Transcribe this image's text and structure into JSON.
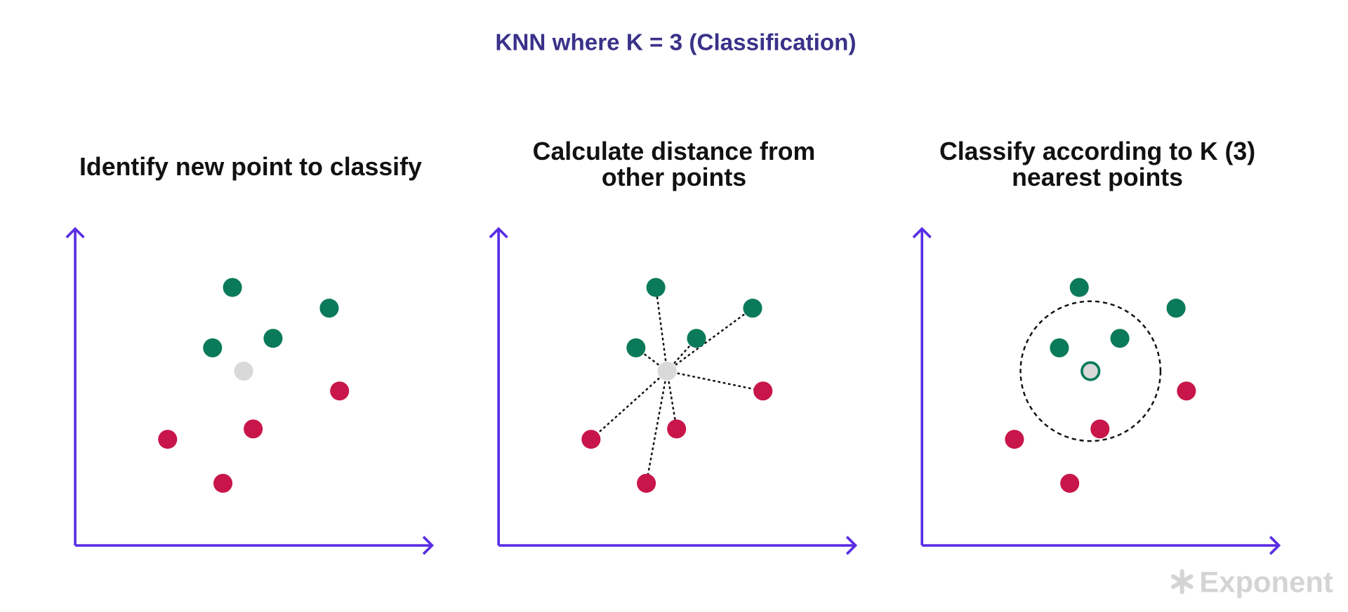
{
  "header": {
    "title": "KNN where K = 3 (Classification)"
  },
  "panels": [
    {
      "title_lines": [
        "Identify new point to classify"
      ]
    },
    {
      "title_lines": [
        "Calculate distance from",
        "other points"
      ]
    },
    {
      "title_lines": [
        "Classify according to K (3)",
        "nearest points"
      ]
    }
  ],
  "logo": "Exponent"
}
